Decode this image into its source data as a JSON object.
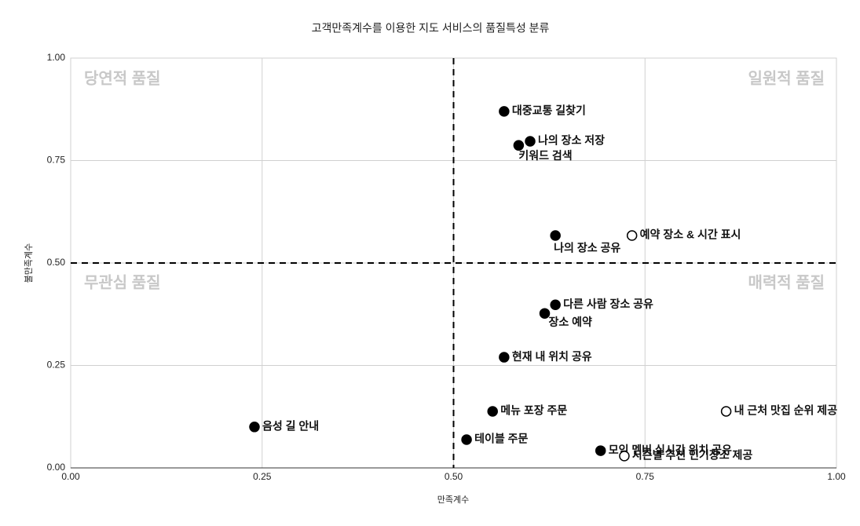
{
  "chart_data": {
    "type": "scatter",
    "title": "고객만족계수를 이용한 지도 서비스의 품질특성 분류",
    "x_label": "만족계수",
    "y_label": "불만족계수",
    "labels": [
      "대중교통 길찾기",
      "나의 장소 저장",
      "키워드 검색",
      "나의 장소 공유",
      "예약 장소 & 시간 표시",
      "다른 사람 장소 공유",
      "장소 예약",
      "현재 내 위치 공유",
      "메뉴 포장 주문",
      "음성 길 안내",
      "테이블 주문",
      "모임 멤버 실시간 위치 공유",
      "시즌별 추천 인기장소 제공",
      "내 근처 맛집 순위 제공"
    ],
    "x": [
      0.566,
      0.6,
      0.585,
      0.633,
      0.733,
      0.633,
      0.619,
      0.566,
      0.551,
      0.24,
      0.517,
      0.692,
      0.723,
      0.856
    ],
    "values": [
      0.87,
      0.797,
      0.787,
      0.567,
      0.567,
      0.398,
      0.377,
      0.27,
      0.138,
      0.1,
      0.069,
      0.042,
      0.029,
      0.138
    ],
    "point_fills": [
      "#000000",
      "#000000",
      "#000000",
      "#000000",
      "#ffffff",
      "#000000",
      "#000000",
      "#000000",
      "#000000",
      "#000000",
      "#000000",
      "#000000",
      "#ffffff",
      "#ffffff"
    ],
    "quadrant_labels": [
      "당연적 품질",
      "일원적 품질",
      "무관심 품질",
      "매력적 품질"
    ],
    "reference_lines": {
      "x": 0.5,
      "y": 0.5
    },
    "xlim": [
      0,
      1
    ],
    "ylim": [
      0,
      1
    ],
    "xticks": [
      {
        "value": 0,
        "label": "0.00"
      },
      {
        "value": 0.25,
        "label": "0.25"
      },
      {
        "value": 0.5,
        "label": "0.50"
      },
      {
        "value": 0.75,
        "label": "0.75"
      },
      {
        "value": 1,
        "label": "1.00"
      }
    ],
    "yticks": [
      {
        "value": 0,
        "label": "0.00"
      },
      {
        "value": 0.25,
        "label": "0.25"
      },
      {
        "value": 0.5,
        "label": "0.50"
      },
      {
        "value": 0.75,
        "label": "0.75"
      },
      {
        "value": 1,
        "label": "1.00"
      }
    ],
    "grid": true
  }
}
